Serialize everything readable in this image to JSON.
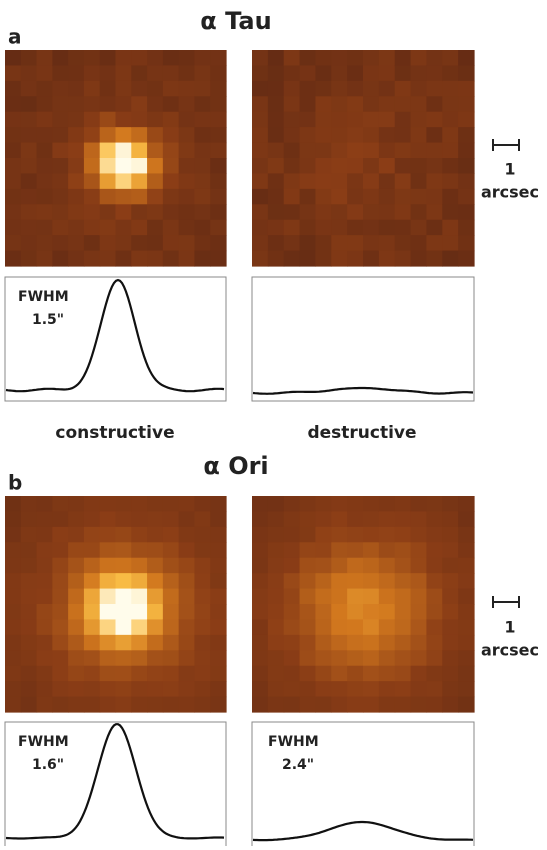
{
  "panels": [
    {
      "label": "a",
      "title": "α Tau",
      "scale_bar": {
        "value": "1",
        "unit": "arcsec"
      },
      "columns": [
        {
          "caption": "constructive",
          "fwhm_label": "FWHM",
          "fwhm_value": "1.5\""
        },
        {
          "caption": "destructive"
        }
      ]
    },
    {
      "label": "b",
      "title": "α Ori",
      "scale_bar": {
        "value": "1",
        "unit": "arcsec"
      },
      "columns": [
        {
          "fwhm_label": "FWHM",
          "fwhm_value": "1.6\""
        },
        {
          "fwhm_label": "FWHM",
          "fwhm_value": "2.4\""
        }
      ]
    }
  ]
}
